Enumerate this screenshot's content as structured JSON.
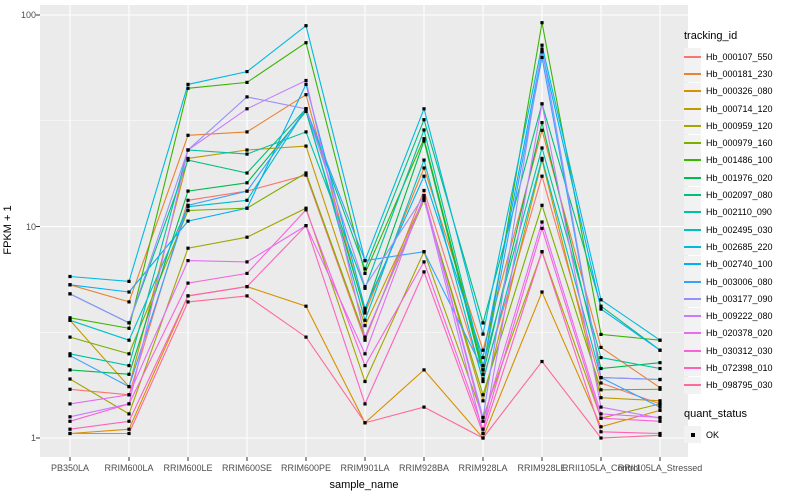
{
  "chart_data": {
    "type": "line",
    "title": "",
    "xlabel": "sample_name",
    "ylabel": "FPKM + 1",
    "y_scale": "log10",
    "ylim": [
      1,
      100
    ],
    "y_ticks": [
      {
        "label": "1",
        "value": 1
      },
      {
        "label": "10",
        "value": 10
      },
      {
        "label": "100",
        "value": 100
      }
    ],
    "y_minor": [
      3.1623,
      31.623
    ],
    "grid": true,
    "legend_position": "right",
    "categories": [
      "PB350LA",
      "RRIM600LA",
      "RRIM600LE",
      "RRIM600SE",
      "RRIM600PE",
      "RRIM901LA",
      "RRIM928BA",
      "RRIM928LA",
      "RRIM928LE",
      "RRII105LA_Control",
      "RRII105LA_Stressed"
    ],
    "point_shape": "filled-square",
    "point_color": "#000000",
    "series": [
      {
        "name": "Hb_000107_550",
        "color": "#F8766D",
        "values": [
          1.7,
          1.6,
          13.3,
          14.7,
          17.5,
          2.9,
          14.8,
          1.9,
          17.3,
          1.82,
          1.45
        ]
      },
      {
        "name": "Hb_000181_230",
        "color": "#EA8331",
        "values": [
          5.3,
          4.4,
          27,
          28,
          42,
          3.9,
          18.9,
          2.6,
          28.5,
          2.68,
          1.73
        ]
      },
      {
        "name": "Hb_000326_080",
        "color": "#D89000",
        "values": [
          1.05,
          1.1,
          4.7,
          5.2,
          4.2,
          1.18,
          2.1,
          1.0,
          4.9,
          1.13,
          1.35
        ]
      },
      {
        "name": "Hb_000714_120",
        "color": "#C09B00",
        "values": [
          3.6,
          1.75,
          21,
          23,
          24,
          3.4,
          13.6,
          1.5,
          20.6,
          1.55,
          1.5
        ]
      },
      {
        "name": "Hb_000959_120",
        "color": "#A3A500",
        "values": [
          1.9,
          1.3,
          7.9,
          8.9,
          12.2,
          1.85,
          7.6,
          1.25,
          7.6,
          1.24,
          1.45
        ]
      },
      {
        "name": "Hb_000979_160",
        "color": "#7CAE00",
        "values": [
          3.0,
          2.5,
          11.9,
          12.2,
          17.9,
          3.0,
          13.3,
          1.6,
          12.6,
          1.69,
          1.7
        ]
      },
      {
        "name": "Hb_001486_100",
        "color": "#39B600",
        "values": [
          3.7,
          3.3,
          45,
          48,
          74,
          6.0,
          26,
          2.1,
          92,
          3.09,
          2.9
        ]
      },
      {
        "name": "Hb_001976_020",
        "color": "#00BB4E",
        "values": [
          2.1,
          2.0,
          14.7,
          16.1,
          35,
          4.0,
          25.4,
          2.0,
          31,
          2.13,
          2.27
        ]
      },
      {
        "name": "Hb_002097_080",
        "color": "#00BF7D",
        "values": [
          4.8,
          3.5,
          20.6,
          17.9,
          36,
          6.3,
          32,
          3.5,
          38,
          4.2,
          2.6
        ]
      },
      {
        "name": "Hb_002110_090",
        "color": "#00C1A3",
        "values": [
          2.5,
          2.2,
          23,
          22,
          28,
          5.1,
          28.6,
          2.2,
          23.5,
          2.4,
          2.13
        ]
      },
      {
        "name": "Hb_002495_030",
        "color": "#00BFC4",
        "values": [
          3.6,
          2.9,
          12.4,
          13.3,
          36,
          3.6,
          20.6,
          1.85,
          21,
          1.93,
          1.89
        ]
      },
      {
        "name": "Hb_002685_220",
        "color": "#00BAE0",
        "values": [
          5.8,
          5.5,
          47,
          54,
          89,
          6.9,
          36,
          3.1,
          72,
          4.5,
          2.9
        ]
      },
      {
        "name": "Hb_002740_100",
        "color": "#00B0F6",
        "values": [
          5.3,
          4.9,
          10.6,
          12.2,
          47,
          4.1,
          17.3,
          2.4,
          67,
          4.07,
          2.6
        ]
      },
      {
        "name": "Hb_003006_080",
        "color": "#35A2FF",
        "values": [
          2.45,
          1.75,
          12.6,
          14.7,
          36,
          6.9,
          7.6,
          2.1,
          63,
          1.93,
          1.4
        ]
      },
      {
        "name": "Hb_003177_090",
        "color": "#9590FF",
        "values": [
          4.8,
          3.5,
          23,
          41,
          36,
          5.2,
          14.0,
          1.25,
          69,
          1.93,
          1.89
        ]
      },
      {
        "name": "Hb_009222_080",
        "color": "#C77CFF",
        "values": [
          1.26,
          1.45,
          23,
          36,
          49,
          3.0,
          13.6,
          1.05,
          38,
          1.4,
          1.24
        ]
      },
      {
        "name": "Hb_020378_020",
        "color": "#E76BF3",
        "values": [
          1.45,
          1.6,
          6.9,
          6.8,
          10.1,
          2.5,
          14.0,
          1.2,
          10.5,
          1.3,
          1.25
        ]
      },
      {
        "name": "Hb_030312_030",
        "color": "#FA62DB",
        "values": [
          1.2,
          1.45,
          5.4,
          6.0,
          12.0,
          2.2,
          6.8,
          1.1,
          9.8,
          1.24,
          1.2
        ]
      },
      {
        "name": "Hb_072398_010",
        "color": "#FF62BC",
        "values": [
          1.1,
          1.2,
          4.7,
          5.2,
          10.1,
          1.45,
          6.1,
          1.05,
          7.6,
          1.07,
          1.05
        ]
      },
      {
        "name": "Hb_098795_030",
        "color": "#FF6A98",
        "values": [
          1.05,
          1.05,
          4.4,
          4.7,
          3.0,
          1.18,
          1.4,
          1.0,
          2.3,
          1.0,
          1.03
        ]
      }
    ]
  },
  "legend": {
    "tracking_title": "tracking_id",
    "quant_title": "quant_status",
    "quant_items": [
      {
        "label": "OK"
      }
    ]
  },
  "colors": {
    "panel": "#EBEBEB",
    "grid": "#FFFFFF",
    "axis_text": "#4D4D4D",
    "tick_mark": "#333333",
    "legend_key": "#F2F2F2",
    "point": "#000000"
  }
}
